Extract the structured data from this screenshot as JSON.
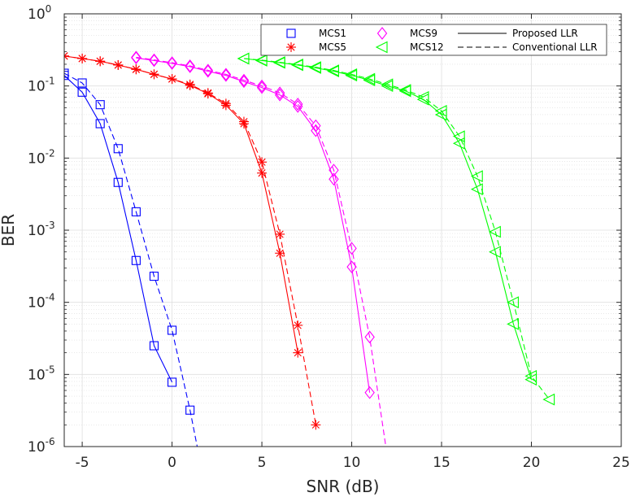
{
  "chart_data": {
    "type": "line",
    "title": "",
    "xlabel": "SNR (dB)",
    "ylabel": "BER",
    "xlim": [
      -6,
      25
    ],
    "ylim": [
      1e-06,
      1
    ],
    "yscale": "log",
    "grid": true,
    "minor_grid": true,
    "xticks": [
      -5,
      0,
      5,
      10,
      15,
      20,
      25
    ],
    "xtick_labels": [
      "-5",
      "0",
      "5",
      "10",
      "15",
      "20",
      "25"
    ],
    "yticks": [
      {
        "value": 1,
        "base": "10",
        "exp": "0"
      },
      {
        "value": 0.1,
        "base": "10",
        "exp": "-1"
      },
      {
        "value": 0.01,
        "base": "10",
        "exp": "-2"
      },
      {
        "value": 0.001,
        "base": "10",
        "exp": "-3"
      },
      {
        "value": 0.0001,
        "base": "10",
        "exp": "-4"
      },
      {
        "value": 1e-05,
        "base": "10",
        "exp": "-5"
      },
      {
        "value": 1e-06,
        "base": "10",
        "exp": "-6"
      }
    ],
    "legend_position": "top-right",
    "legend": {
      "markers": [
        {
          "label": "MCS1",
          "color": "#0000ff",
          "marker": "square"
        },
        {
          "label": "MCS5",
          "color": "#ff0000",
          "marker": "asterisk"
        },
        {
          "label": "MCS9",
          "color": "#ff00ff",
          "marker": "diamond"
        },
        {
          "label": "MCS12",
          "color": "#00ff00",
          "marker": "triangle-left"
        }
      ],
      "lines": [
        {
          "label": "Proposed LLR",
          "style": "solid",
          "color": "#000000"
        },
        {
          "label": "Conventional LLR",
          "style": "dashed",
          "color": "#000000"
        }
      ]
    },
    "series": [
      {
        "name": "MCS1 Proposed LLR",
        "color": "#0000ff",
        "marker": "square",
        "style": "solid",
        "x": [
          -6,
          -5,
          -4,
          -3,
          -2,
          -1,
          0
        ],
        "y": [
          0.14,
          0.082,
          0.03,
          0.0046,
          0.00038,
          2.5e-05,
          7.8e-06
        ]
      },
      {
        "name": "MCS1 Conventional LLR",
        "color": "#0000ff",
        "marker": "square",
        "style": "dashed",
        "x": [
          -6,
          -5,
          -4,
          -3,
          -2,
          -1,
          0,
          1,
          1.4
        ],
        "y": [
          0.15,
          0.11,
          0.055,
          0.0135,
          0.0018,
          0.00023,
          4.1e-05,
          3.2e-06,
          1e-06
        ]
      },
      {
        "name": "MCS5 Proposed LLR",
        "color": "#ff0000",
        "marker": "asterisk",
        "style": "solid",
        "x": [
          -6,
          -5,
          -4,
          -3,
          -2,
          -1,
          0,
          1,
          2,
          3,
          4,
          5,
          6,
          7
        ],
        "y": [
          0.26,
          0.24,
          0.22,
          0.195,
          0.17,
          0.145,
          0.125,
          0.102,
          0.078,
          0.054,
          0.03,
          0.0062,
          0.00048,
          2e-05
        ]
      },
      {
        "name": "MCS5 Conventional LLR",
        "color": "#ff0000",
        "marker": "asterisk",
        "style": "dashed",
        "x": [
          -6,
          -5,
          -4,
          -3,
          -2,
          -1,
          0,
          1,
          2,
          3,
          4,
          5,
          6,
          7,
          8
        ],
        "y": [
          0.26,
          0.24,
          0.22,
          0.195,
          0.17,
          0.145,
          0.125,
          0.105,
          0.08,
          0.057,
          0.032,
          0.0088,
          0.00088,
          4.8e-05,
          2e-06
        ]
      },
      {
        "name": "MCS9 Proposed LLR",
        "color": "#ff00ff",
        "marker": "diamond",
        "style": "solid",
        "x": [
          -2,
          -1,
          0,
          1,
          2,
          3,
          4,
          5,
          6,
          7,
          8,
          9,
          10,
          11
        ],
        "y": [
          0.245,
          0.225,
          0.205,
          0.185,
          0.16,
          0.14,
          0.115,
          0.095,
          0.075,
          0.052,
          0.024,
          0.0051,
          0.00031,
          5.6e-06
        ]
      },
      {
        "name": "MCS9 Conventional LLR",
        "color": "#ff00ff",
        "marker": "diamond",
        "style": "dashed",
        "x": [
          -2,
          -1,
          0,
          1,
          2,
          3,
          4,
          5,
          6,
          7,
          8,
          9,
          10,
          11,
          11.9
        ],
        "y": [
          0.25,
          0.23,
          0.21,
          0.19,
          0.165,
          0.145,
          0.12,
          0.1,
          0.08,
          0.056,
          0.028,
          0.0068,
          0.00056,
          3.3e-05,
          1e-06
        ]
      },
      {
        "name": "MCS12 Proposed LLR",
        "color": "#00ff00",
        "marker": "triangle-left",
        "style": "solid",
        "x": [
          4,
          5,
          6,
          7,
          8,
          9,
          10,
          11,
          12,
          13,
          14,
          15,
          16,
          17,
          18,
          19,
          20
        ],
        "y": [
          0.24,
          0.225,
          0.21,
          0.195,
          0.178,
          0.16,
          0.14,
          0.12,
          0.1,
          0.085,
          0.065,
          0.04,
          0.016,
          0.0037,
          0.0005,
          5e-05,
          8.5e-06
        ]
      },
      {
        "name": "MCS12 Conventional LLR",
        "color": "#00ff00",
        "marker": "triangle-left",
        "style": "dashed",
        "x": [
          4,
          5,
          6,
          7,
          8,
          9,
          10,
          11,
          12,
          13,
          14,
          15,
          16,
          17,
          18,
          19,
          20,
          21
        ],
        "y": [
          0.24,
          0.228,
          0.213,
          0.198,
          0.182,
          0.164,
          0.145,
          0.125,
          0.105,
          0.088,
          0.07,
          0.045,
          0.02,
          0.0056,
          0.00095,
          0.0001,
          9.5e-06,
          4.5e-06
        ]
      }
    ]
  }
}
